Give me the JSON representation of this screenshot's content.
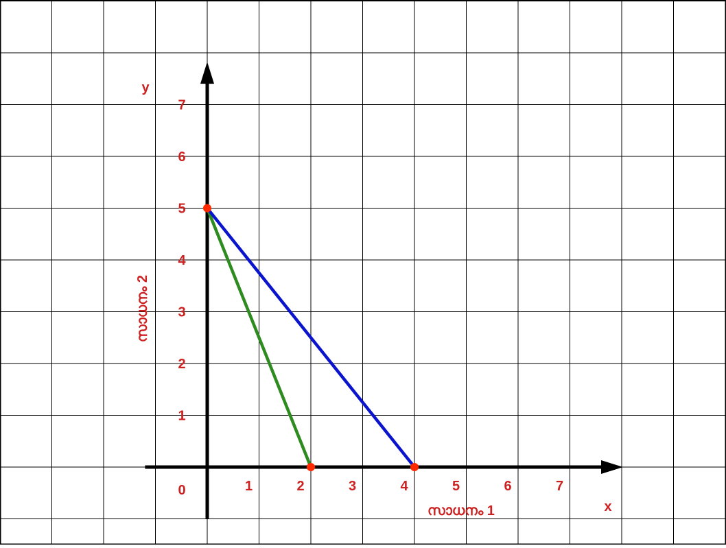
{
  "chart_data": {
    "type": "line",
    "xlabel": "സാധനം 1",
    "ylabel": "സാധനം 2",
    "x_axis_name": "x",
    "y_axis_name": "y",
    "origin_label": "0",
    "x_ticks": [
      "1",
      "2",
      "3",
      "4",
      "5",
      "6",
      "7"
    ],
    "y_ticks": [
      "1",
      "2",
      "3",
      "4",
      "5",
      "6",
      "7"
    ],
    "xlim": [
      -1.2,
      8
    ],
    "ylim": [
      -1,
      7.8
    ],
    "grid": true,
    "series": [
      {
        "points": [
          [
            0,
            5
          ],
          [
            2,
            0
          ]
        ],
        "color": "#2e8b1f"
      },
      {
        "points": [
          [
            0,
            5
          ],
          [
            4,
            0
          ]
        ],
        "color": "#0a14cc"
      }
    ],
    "markers": [
      {
        "x": 0,
        "y": 5,
        "color": "#ff2a00"
      },
      {
        "x": 2,
        "y": 0,
        "color": "#ff2a00"
      },
      {
        "x": 4,
        "y": 0,
        "color": "#ff2a00"
      }
    ],
    "colors": {
      "label": "#cc2222",
      "axis": "#000000",
      "grid": "#000000"
    }
  }
}
